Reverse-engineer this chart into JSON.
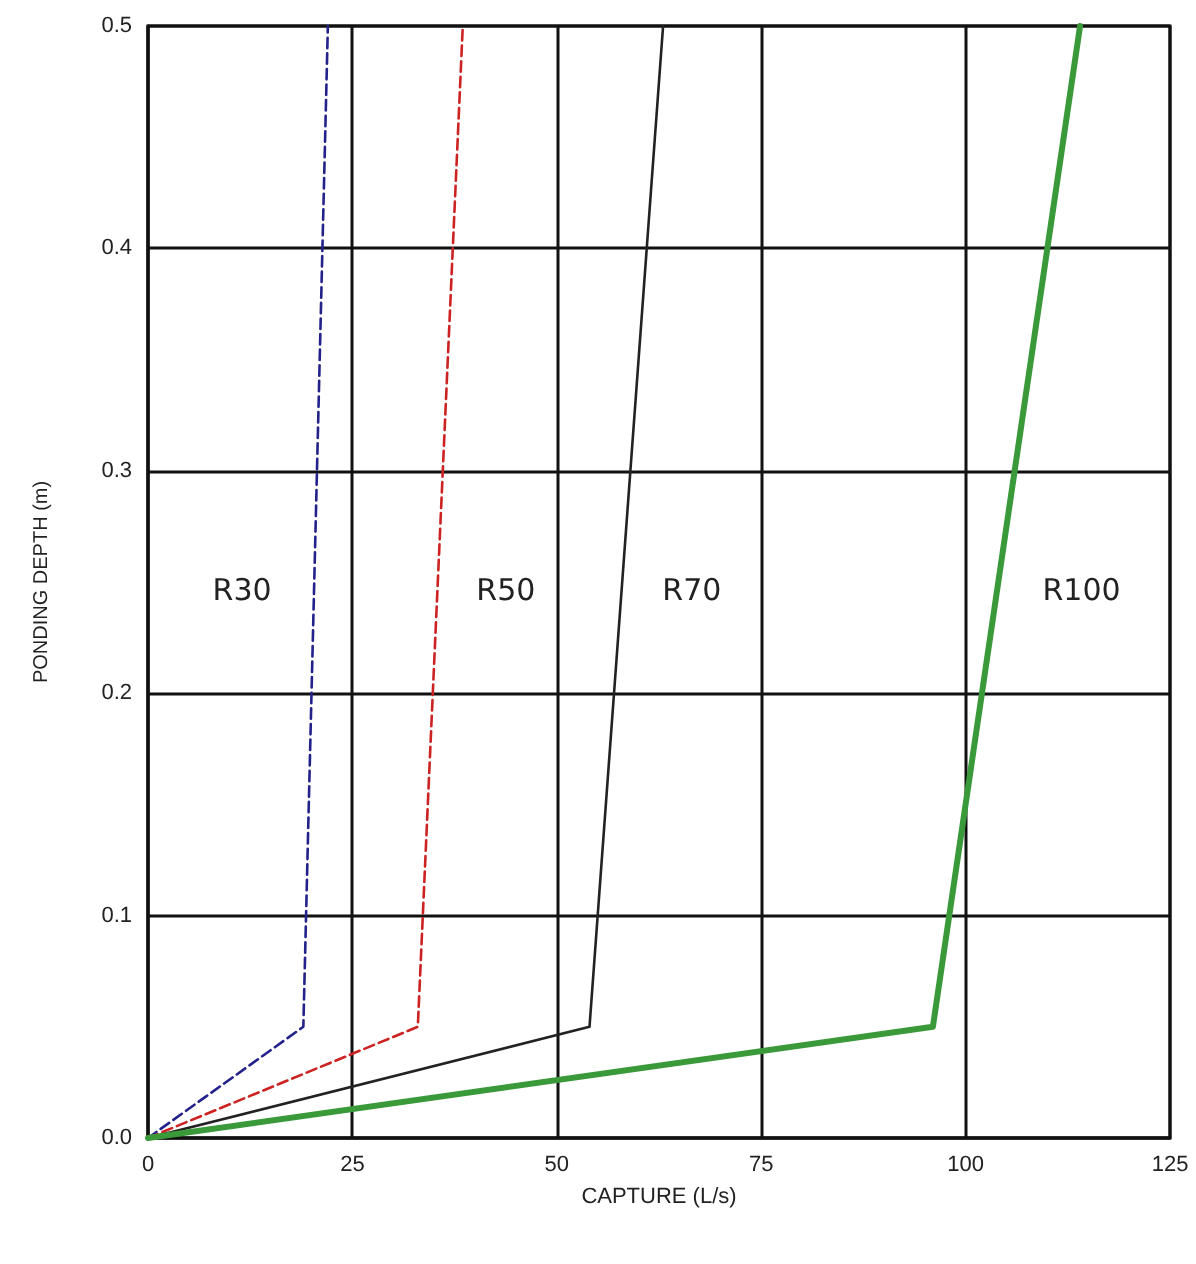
{
  "chart_data": {
    "type": "line",
    "xlabel": "CAPTURE (L/s)",
    "ylabel": "PONDING DEPTH (m)",
    "xlim": [
      0,
      125
    ],
    "xticks": [
      0,
      25,
      50,
      75,
      100,
      125
    ],
    "ylim": [
      0,
      0.5
    ],
    "yticks": [
      {
        "value": 0,
        "label": "0.0"
      },
      0.1,
      0.2,
      0.3,
      0.4,
      0.5
    ],
    "grid": true,
    "legend": false,
    "marker": "none",
    "series": [
      {
        "name": "R30",
        "color": "#22228a",
        "line_style": "dashed",
        "x": [
          0,
          19,
          22
        ],
        "values": [
          0,
          0.05,
          0.5
        ]
      },
      {
        "name": "R50",
        "color": "#cc2222",
        "line_style": "dashed",
        "x": [
          0,
          33,
          38.5
        ],
        "values": [
          0,
          0.05,
          0.5
        ]
      },
      {
        "name": "R70",
        "color": "#222222",
        "line_style": "solid",
        "x": [
          0,
          54,
          63
        ],
        "values": [
          0,
          0.05,
          0.5
        ]
      },
      {
        "name": "R100",
        "color": "#3a9a3a",
        "line_style": "solid",
        "x": [
          0,
          96,
          114
        ],
        "values": [
          0,
          0.05,
          0.5
        ]
      }
    ]
  }
}
